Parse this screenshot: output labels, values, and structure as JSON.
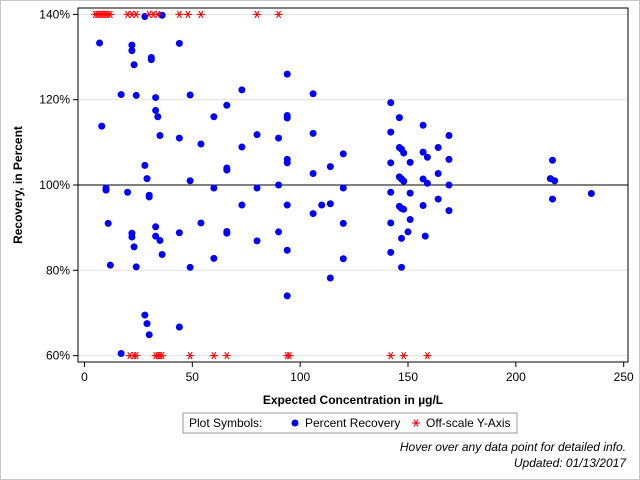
{
  "chart_data": {
    "type": "scatter",
    "title": "",
    "xlabel": "Expected Concentration in µg/L",
    "ylabel": "Recovery, in Percent",
    "xlim": [
      -3,
      252
    ],
    "ylim": [
      58.5,
      141.5
    ],
    "x_ticks": [
      0,
      50,
      100,
      150,
      200,
      250
    ],
    "x_tick_labels": [
      "0",
      "50",
      "100",
      "150",
      "200",
      "250"
    ],
    "y_ticks": [
      60,
      80,
      100,
      120,
      140
    ],
    "y_tick_labels": [
      "60%",
      "80%",
      "100%",
      "120%",
      "140%"
    ],
    "grid": "horizontal gridlines",
    "reference_line_y": 100,
    "legend": {
      "placement": "bottom",
      "title": "Plot Symbols:",
      "entries": [
        "Percent Recovery",
        "Off-scale Y-Axis"
      ]
    },
    "colors": {
      "percent_recovery": "#0000ff",
      "off_scale": "#ff0000"
    },
    "series": [
      {
        "name": "Percent Recovery",
        "marker": "circle",
        "points": [
          [
            7,
            133.3
          ],
          [
            8,
            113.8
          ],
          [
            10,
            99.3
          ],
          [
            10,
            98.8
          ],
          [
            11,
            91.0
          ],
          [
            12,
            81.2
          ],
          [
            17,
            121.2
          ],
          [
            17,
            60.5
          ],
          [
            20,
            98.3
          ],
          [
            22,
            132.8
          ],
          [
            22,
            131.5
          ],
          [
            22,
            88.7
          ],
          [
            22,
            87.8
          ],
          [
            23,
            85.5
          ],
          [
            23,
            128.2
          ],
          [
            24,
            121.0
          ],
          [
            24,
            80.8
          ],
          [
            28,
            139.5
          ],
          [
            28,
            104.6
          ],
          [
            28,
            69.5
          ],
          [
            29,
            101.5
          ],
          [
            29,
            67.5
          ],
          [
            30,
            64.9
          ],
          [
            30,
            97.2
          ],
          [
            30,
            97.6
          ],
          [
            31,
            129.9
          ],
          [
            31,
            129.4
          ],
          [
            33,
            120.5
          ],
          [
            33,
            117.5
          ],
          [
            33,
            90.2
          ],
          [
            33,
            88.0
          ],
          [
            34,
            116.0
          ],
          [
            35,
            111.6
          ],
          [
            35,
            87.0
          ],
          [
            36,
            83.7
          ],
          [
            36,
            139.8
          ],
          [
            44,
            133.2
          ],
          [
            44,
            111.0
          ],
          [
            44,
            88.8
          ],
          [
            44,
            66.7
          ],
          [
            49,
            121.1
          ],
          [
            49,
            101.0
          ],
          [
            49,
            80.7
          ],
          [
            54,
            109.6
          ],
          [
            54,
            91.1
          ],
          [
            60,
            116.0
          ],
          [
            60,
            99.3
          ],
          [
            60,
            82.8
          ],
          [
            66,
            118.7
          ],
          [
            66,
            104.0
          ],
          [
            66,
            103.5
          ],
          [
            66,
            89.1
          ],
          [
            66,
            88.7
          ],
          [
            73,
            122.3
          ],
          [
            73,
            108.9
          ],
          [
            73,
            95.3
          ],
          [
            80,
            111.8
          ],
          [
            80,
            99.3
          ],
          [
            80,
            86.9
          ],
          [
            90,
            111.0
          ],
          [
            90,
            100.0
          ],
          [
            90,
            89.0
          ],
          [
            94,
            126.0
          ],
          [
            94,
            116.3
          ],
          [
            94,
            115.7
          ],
          [
            94,
            106.0
          ],
          [
            94,
            105.2
          ],
          [
            94,
            95.3
          ],
          [
            94,
            84.7
          ],
          [
            94,
            74.0
          ],
          [
            106,
            121.4
          ],
          [
            106,
            112.1
          ],
          [
            106,
            102.7
          ],
          [
            106,
            93.3
          ],
          [
            110,
            95.3
          ],
          [
            114,
            104.3
          ],
          [
            114,
            95.6
          ],
          [
            114,
            78.2
          ],
          [
            120,
            107.3
          ],
          [
            120,
            99.3
          ],
          [
            120,
            91.0
          ],
          [
            120,
            82.7
          ],
          [
            142,
            119.3
          ],
          [
            142,
            112.4
          ],
          [
            142,
            105.2
          ],
          [
            142,
            98.3
          ],
          [
            142,
            91.1
          ],
          [
            142,
            84.2
          ],
          [
            146,
            115.8
          ],
          [
            146,
            108.8
          ],
          [
            146,
            101.9
          ],
          [
            146,
            95.0
          ],
          [
            147,
            108.4
          ],
          [
            147,
            101.4
          ],
          [
            147,
            94.5
          ],
          [
            147,
            87.5
          ],
          [
            147,
            80.7
          ],
          [
            148,
            107.5
          ],
          [
            148,
            100.9
          ],
          [
            148,
            94.3
          ],
          [
            150,
            89.0
          ],
          [
            151,
            105.3
          ],
          [
            151,
            98.1
          ],
          [
            151,
            91.9
          ],
          [
            157,
            114.0
          ],
          [
            157,
            107.7
          ],
          [
            157,
            101.4
          ],
          [
            157,
            95.2
          ],
          [
            158,
            88.0
          ],
          [
            159,
            106.5
          ],
          [
            159,
            100.4
          ],
          [
            164,
            108.8
          ],
          [
            164,
            102.7
          ],
          [
            164,
            96.7
          ],
          [
            169,
            111.6
          ],
          [
            169,
            106.0
          ],
          [
            169,
            100.0
          ],
          [
            169,
            94.0
          ],
          [
            216,
            101.5
          ],
          [
            217,
            105.8
          ],
          [
            217,
            96.7
          ],
          [
            218,
            101.0
          ],
          [
            235,
            98.0
          ]
        ]
      },
      {
        "name": "Off-scale Y-Axis",
        "marker": "asterisk",
        "points": [
          [
            5,
            140
          ],
          [
            6,
            140
          ],
          [
            7,
            140
          ],
          [
            8,
            140
          ],
          [
            9,
            140
          ],
          [
            10,
            140
          ],
          [
            11,
            140
          ],
          [
            12,
            140
          ],
          [
            20,
            140
          ],
          [
            22,
            140
          ],
          [
            24,
            140
          ],
          [
            30,
            140
          ],
          [
            32,
            140
          ],
          [
            34,
            140
          ],
          [
            44,
            140
          ],
          [
            48,
            140
          ],
          [
            54,
            140
          ],
          [
            80,
            140
          ],
          [
            90,
            140
          ],
          [
            21,
            60
          ],
          [
            23,
            60
          ],
          [
            24,
            60
          ],
          [
            33,
            60
          ],
          [
            34,
            60
          ],
          [
            35,
            60
          ],
          [
            36,
            60
          ],
          [
            49,
            60
          ],
          [
            60,
            60
          ],
          [
            66,
            60
          ],
          [
            94,
            60
          ],
          [
            95,
            60
          ],
          [
            142,
            60
          ],
          [
            148,
            60
          ],
          [
            159,
            60
          ]
        ]
      }
    ]
  },
  "footer": {
    "hover_note": "Hover over any data point for detailed info.",
    "updated": "Updated: 01/13/2017"
  }
}
